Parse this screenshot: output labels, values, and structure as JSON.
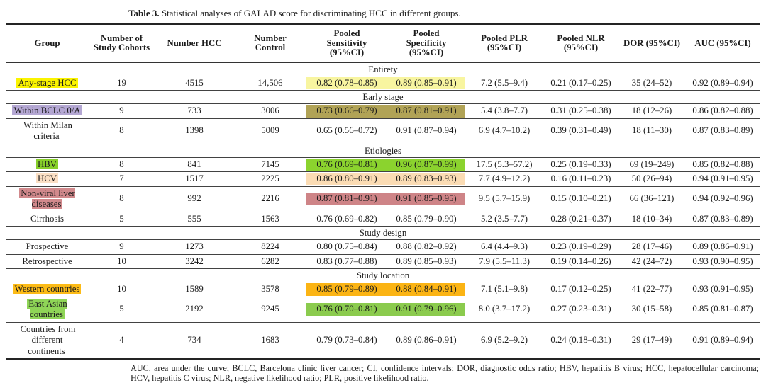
{
  "title": {
    "label": "Table 3.",
    "text": "Statistical analyses of GALAD score for discriminating HCC in different groups."
  },
  "table": {
    "columns": [
      "Group",
      "Number of Study Cohorts",
      "Number HCC",
      "Number Control",
      "Pooled Sensitivity (95%CI)",
      "Pooled Specificity (95%CI)",
      "Pooled PLR (95%CI)",
      "Pooled NLR (95%CI)",
      "DOR (95%CI)",
      "AUC (95%CI)"
    ],
    "sections": [
      {
        "label": "Entirety",
        "rows": [
          {
            "group": "Any-stage HCC",
            "cohorts": "19",
            "hcc": "4515",
            "control": "14,506",
            "sens": "0.82 (0.78–0.85)",
            "spec": "0.89 (0.85–0.91)",
            "plr": "7.2 (5.5–9.4)",
            "nlr": "0.21 (0.17–0.25)",
            "dor": "35 (24–52)",
            "auc": "0.92 (0.89–0.94)",
            "label_bg": "#fbf400",
            "band_bg": "#f8f5a0"
          }
        ]
      },
      {
        "label": "Early stage",
        "rows": [
          {
            "group": "Within BCLC 0/A",
            "cohorts": "9",
            "hcc": "733",
            "control": "3006",
            "sens": "0.73 (0.66–0.79)",
            "spec": "0.87 (0.81–0.91)",
            "plr": "5.4 (3.8–7.7)",
            "nlr": "0.31 (0.25–0.38)",
            "dor": "18 (12–26)",
            "auc": "0.86 (0.82–0.88)",
            "label_bg": "#b4a7d3",
            "band_bg": "#b1a356"
          },
          {
            "group": "Within Milan criteria",
            "cohorts": "8",
            "hcc": "1398",
            "control": "5009",
            "sens": "0.65 (0.56–0.72)",
            "spec": "0.91 (0.87–0.94)",
            "plr": "6.9 (4.7–10.2)",
            "nlr": "0.39 (0.31–0.49)",
            "dor": "18 (11–30)",
            "auc": "0.87 (0.83–0.89)",
            "label_bg": null,
            "band_bg": null
          }
        ]
      },
      {
        "label": "Etiologies",
        "rows": [
          {
            "group": "HBV",
            "cohorts": "8",
            "hcc": "841",
            "control": "7145",
            "sens": "0.76 (0.69–0.81)",
            "spec": "0.96 (0.87–0.99)",
            "plr": "17.5 (5.3–57.2)",
            "nlr": "0.25 (0.19–0.33)",
            "dor": "69 (19–249)",
            "auc": "0.85 (0.82–0.88)",
            "label_bg": "#87d02a",
            "band_bg": "#8bd32e"
          },
          {
            "group": "HCV",
            "cohorts": "7",
            "hcc": "1517",
            "control": "2225",
            "sens": "0.86 (0.80–0.91)",
            "spec": "0.89 (0.83–0.93)",
            "plr": "7.7 (4.9–12.2)",
            "nlr": "0.16 (0.11–0.23)",
            "dor": "50 (26–94)",
            "auc": "0.94 (0.91–0.95)",
            "label_bg": "#fbdfc4",
            "band_bg": "#fbdcb4"
          },
          {
            "group": "Non-viral liver diseases",
            "cohorts": "8",
            "hcc": "992",
            "control": "2216",
            "sens": "0.87 (0.81–0.91)",
            "spec": "0.91 (0.85–0.95)",
            "plr": "9.5 (5.7–15.9)",
            "nlr": "0.15 (0.10–0.21)",
            "dor": "66 (36–121)",
            "auc": "0.94 (0.92–0.96)",
            "label_bg": "#d1898c",
            "band_bg": "#ce8487"
          },
          {
            "group": "Cirrhosis",
            "cohorts": "5",
            "hcc": "555",
            "control": "1563",
            "sens": "0.76 (0.69–0.82)",
            "spec": "0.85 (0.79–0.90)",
            "plr": "5.2 (3.5–7.7)",
            "nlr": "0.28 (0.21–0.37)",
            "dor": "18 (10–34)",
            "auc": "0.87 (0.83–0.89)",
            "label_bg": null,
            "band_bg": null
          }
        ]
      },
      {
        "label": "Study design",
        "rows": [
          {
            "group": "Prospective",
            "cohorts": "9",
            "hcc": "1273",
            "control": "8224",
            "sens": "0.80 (0.75–0.84)",
            "spec": "0.88 (0.82–0.92)",
            "plr": "6.4 (4.4–9.3)",
            "nlr": "0.23 (0.19–0.29)",
            "dor": "28 (17–46)",
            "auc": "0.89 (0.86–0.91)",
            "label_bg": null,
            "band_bg": null
          },
          {
            "group": "Retrospective",
            "cohorts": "10",
            "hcc": "3242",
            "control": "6282",
            "sens": "0.83 (0.77–0.88)",
            "spec": "0.89 (0.85–0.93)",
            "plr": "7.9 (5.5–11.3)",
            "nlr": "0.19 (0.14–0.26)",
            "dor": "42 (24–72)",
            "auc": "0.93 (0.90–0.95)",
            "label_bg": null,
            "band_bg": null
          }
        ]
      },
      {
        "label": "Study location",
        "rows": [
          {
            "group": "Western countries",
            "cohorts": "10",
            "hcc": "1589",
            "control": "3578",
            "sens": "0.85 (0.79–0.89)",
            "spec": "0.88 (0.84–0.91)",
            "plr": "7.1 (5.1–9.8)",
            "nlr": "0.17 (0.12–0.25)",
            "dor": "41 (22–77)",
            "auc": "0.93 (0.91–0.95)",
            "label_bg": "#fcbb17",
            "band_bg": "#fbb414"
          },
          {
            "group": "East Asian countries",
            "cohorts": "5",
            "hcc": "2192",
            "control": "9245",
            "sens": "0.76 (0.70–0.81)",
            "spec": "0.91 (0.79–0.96)",
            "plr": "8.0 (3.7–17.2)",
            "nlr": "0.27 (0.23–0.31)",
            "dor": "30 (15–58)",
            "auc": "0.85 (0.81–0.87)",
            "label_bg": "#8fd557",
            "band_bg": "#8bcb4e"
          },
          {
            "group": "Countries from different continents",
            "cohorts": "4",
            "hcc": "734",
            "control": "1683",
            "sens": "0.79 (0.73–0.84)",
            "spec": "0.89 (0.86–0.91)",
            "plr": "6.9 (5.2–9.2)",
            "nlr": "0.24 (0.18–0.31)",
            "dor": "29 (17–49)",
            "auc": "0.91 (0.89–0.94)",
            "label_bg": null,
            "band_bg": null
          }
        ]
      }
    ]
  },
  "footnote": "AUC, area under the curve; BCLC, Barcelona clinic liver cancer; CI, confidence intervals; DOR, diagnostic odds ratio; HBV, hepatitis B virus; HCC, hepatocellular carcinoma; HCV, hepatitis C virus; NLR, negative likelihood ratio; PLR, positive likelihood ratio."
}
